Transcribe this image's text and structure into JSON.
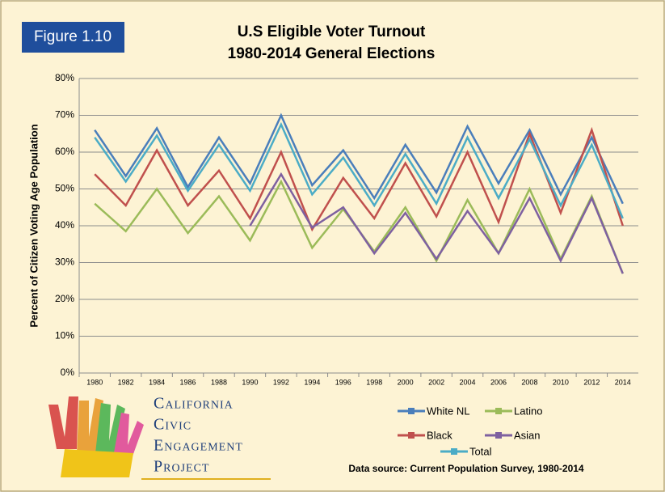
{
  "figure_label": "Figure 1.10",
  "logo": [
    "California",
    "Civic",
    "Engagement",
    "Project"
  ],
  "source": "Data source: Current Population Survey, 1980-2014",
  "chart_data": {
    "type": "line",
    "title": [
      "U.S Eligible Voter Turnout",
      "1980-2014 General Elections"
    ],
    "y_label": "Percent of Citizen Voting Age Population",
    "categories": [
      "1980",
      "1982",
      "1984",
      "1986",
      "1988",
      "1990",
      "1992",
      "1994",
      "1996",
      "1998",
      "2000",
      "2002",
      "2004",
      "2006",
      "2008",
      "2010",
      "2012",
      "2014"
    ],
    "ylim": [
      0,
      80
    ],
    "yticks": [
      {
        "value": 0,
        "label": "0%"
      },
      {
        "value": 10,
        "label": "10%"
      },
      {
        "value": 20,
        "label": "20%"
      },
      {
        "value": 30,
        "label": "30%"
      },
      {
        "value": 40,
        "label": "40%"
      },
      {
        "value": 50,
        "label": "50%"
      },
      {
        "value": 60,
        "label": "60%"
      },
      {
        "value": 70,
        "label": "70%"
      },
      {
        "value": 80,
        "label": "80%"
      }
    ],
    "grid": true,
    "series": [
      {
        "name": "White NL",
        "color": "#4a7ebb",
        "values": [
          66,
          53.5,
          66.5,
          50.5,
          64,
          51.5,
          70,
          51,
          60.5,
          47.5,
          62,
          49,
          67,
          51.5,
          66,
          48.5,
          64,
          46
        ]
      },
      {
        "name": "Latino",
        "color": "#9bbb59",
        "values": [
          46,
          38.5,
          50,
          38,
          48,
          36,
          52,
          34,
          44.5,
          33,
          45,
          30.5,
          47,
          32.5,
          50,
          31,
          48,
          27
        ]
      },
      {
        "name": "Black",
        "color": "#c0504d",
        "values": [
          54,
          45.5,
          60.5,
          45.5,
          55,
          42,
          60,
          39,
          53,
          42,
          57,
          42.5,
          60,
          41,
          65,
          43.5,
          66,
          40
        ]
      },
      {
        "name": "Asian",
        "color": "#7e60a0",
        "values": [
          null,
          null,
          null,
          null,
          null,
          40,
          54,
          39.5,
          45,
          32.5,
          43.5,
          31,
          44,
          32.5,
          47.5,
          30.5,
          47.5,
          27
        ]
      },
      {
        "name": "Total",
        "color": "#4bacc6",
        "values": [
          64,
          52,
          64.5,
          49.5,
          62,
          49.5,
          67.5,
          48.5,
          58.5,
          45.5,
          59.5,
          46,
          64,
          47.5,
          63.5,
          45.5,
          62,
          42
        ]
      }
    ]
  }
}
